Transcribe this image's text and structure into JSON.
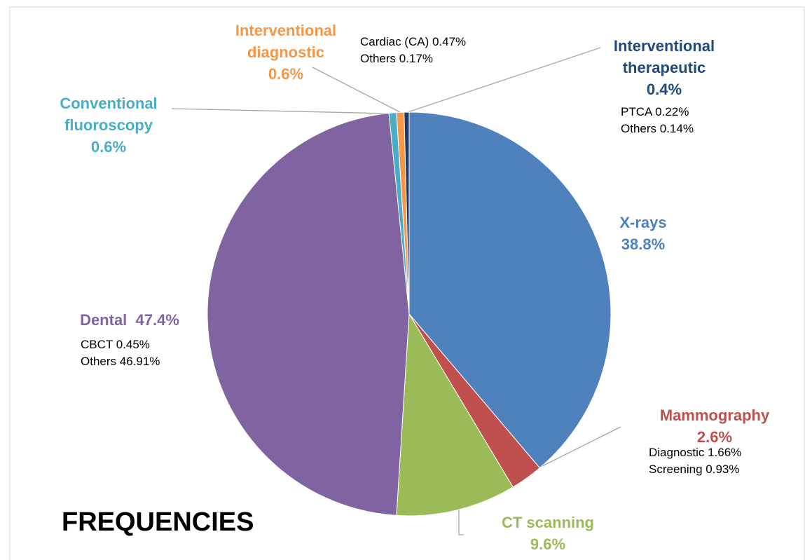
{
  "chart_data": {
    "type": "pie",
    "title": "FREQUENCIES",
    "categories": [
      "X-rays",
      "Mammography",
      "CT scanning",
      "Dental",
      "Conventional fluoroscopy",
      "Interventional diagnostic",
      "Interventional therapeutic"
    ],
    "values": [
      38.8,
      2.6,
      9.6,
      47.4,
      0.6,
      0.6,
      0.4
    ],
    "value_labels": [
      "38.8%",
      "2.6%",
      "9.6%",
      "47.4%",
      "0.6%",
      "0.6%",
      "0.4%"
    ],
    "colors": [
      "#4f81bd",
      "#c0504d",
      "#9bbb59",
      "#8064a2",
      "#4bacc6",
      "#f79646",
      "#1f3864"
    ],
    "label_colors": [
      "#4f81bd",
      "#c0504d",
      "#9bbb59",
      "#8064a2",
      "#4bacc6",
      "#f79646",
      "#1f497d"
    ],
    "details": [
      [],
      [
        "Diagnostic 1.66%",
        "Screening 0.93%"
      ],
      [],
      [
        "CBCT 0.45%",
        "Others 46.91%"
      ],
      [],
      [
        "Cardiac (CA) 0.47%",
        "Others 0.17%"
      ],
      [
        "PTCA 0.22%",
        "Others 0.14%"
      ]
    ]
  }
}
